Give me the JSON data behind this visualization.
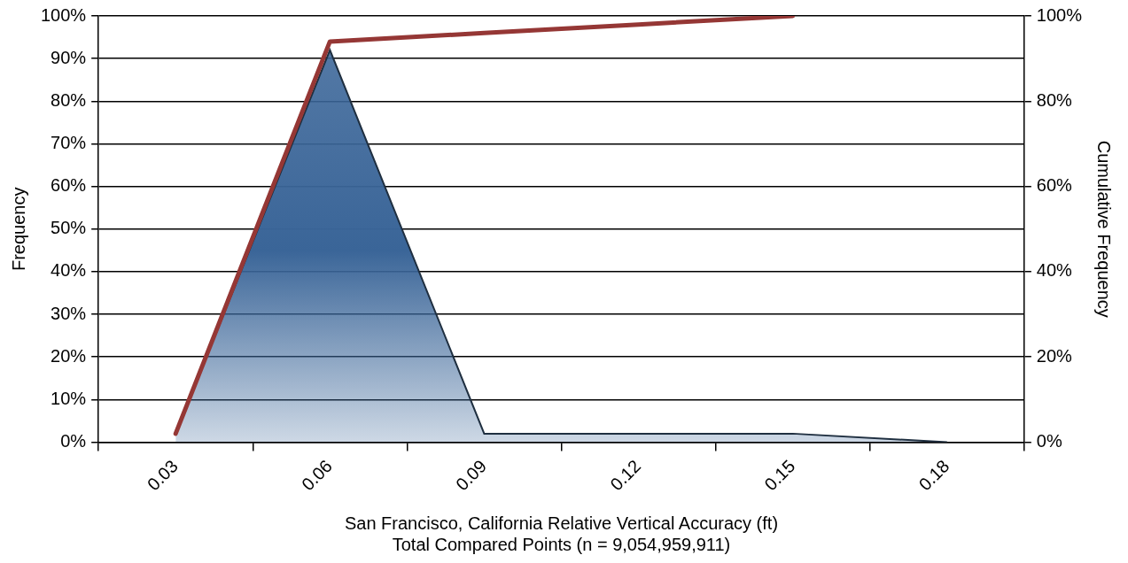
{
  "chart_data": {
    "type": "area",
    "xlabel": "San Francisco, California Relative Vertical Accuracy (ft)\nTotal Compared Points (n = 9,054,959,911)",
    "ylabel": "Frequency",
    "y2label": "Cumulative Frequency",
    "categories": [
      "0.03",
      "0.06",
      "0.09",
      "0.12",
      "0.15",
      "0.18"
    ],
    "series": [
      {
        "type": "area",
        "color": "#3a6598",
        "values": [
          2,
          92,
          2,
          2,
          2,
          0
        ]
      },
      {
        "type": "line",
        "axis": "y2",
        "color": "#953735",
        "values": [
          2,
          94,
          96,
          98,
          100,
          null
        ]
      }
    ],
    "ylim": [
      0,
      100
    ],
    "yticks": [
      {
        "value": 0,
        "label": "0%"
      },
      {
        "value": 10,
        "label": "10%"
      },
      {
        "value": 20,
        "label": "20%"
      },
      {
        "value": 30,
        "label": "30%"
      },
      {
        "value": 40,
        "label": "40%"
      },
      {
        "value": 50,
        "label": "50%"
      },
      {
        "value": 60,
        "label": "60%"
      },
      {
        "value": 70,
        "label": "70%"
      },
      {
        "value": 80,
        "label": "80%"
      },
      {
        "value": 90,
        "label": "90%"
      },
      {
        "value": 100,
        "label": "100%"
      }
    ],
    "y2lim": [
      0,
      100
    ],
    "y2ticks": [
      {
        "value": 0,
        "label": "0%"
      },
      {
        "value": 20,
        "label": "20%"
      },
      {
        "value": 40,
        "label": "40%"
      },
      {
        "value": 60,
        "label": "60%"
      },
      {
        "value": 80,
        "label": "80%"
      },
      {
        "value": 100,
        "label": "100%"
      }
    ],
    "grid": "y",
    "legend": false,
    "marker": "none"
  }
}
